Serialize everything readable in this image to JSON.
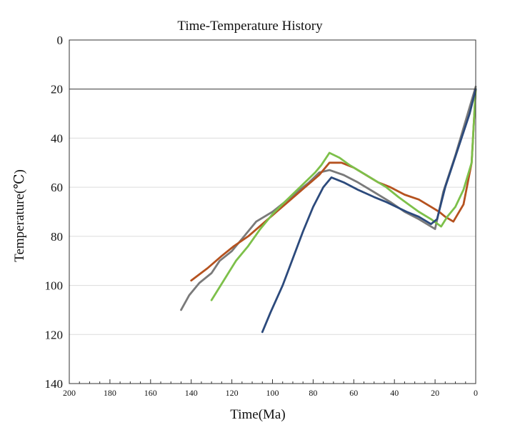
{
  "chart_data": {
    "type": "line",
    "title": "Time-Temperature History",
    "xlabel": "Time(Ma)",
    "ylabel": "Temperature(℃)",
    "xlim": [
      200,
      0
    ],
    "ylim": [
      0,
      140
    ],
    "y_inverted": true,
    "x_ticks": [
      200,
      180,
      160,
      140,
      120,
      100,
      80,
      60,
      40,
      20,
      0
    ],
    "y_ticks": [
      0,
      20,
      40,
      60,
      80,
      100,
      120,
      140
    ],
    "x_minor_step": 5,
    "grid": true,
    "reference_line_y": 20,
    "legend": "none",
    "series": [
      {
        "color": "#7a7a7a",
        "x": [
          145,
          141,
          136,
          130,
          126,
          120,
          114,
          108,
          100,
          94,
          88,
          82,
          77,
          72,
          65,
          58,
          50,
          42,
          35,
          28,
          20,
          16,
          10,
          5,
          0
        ],
        "y": [
          110,
          104,
          99,
          95,
          90,
          86,
          80,
          74,
          70,
          66,
          62,
          58,
          54,
          53,
          55,
          58,
          62,
          66,
          70,
          73,
          77,
          62,
          47,
          33,
          19
        ]
      },
      {
        "color": "#b5521f",
        "x": [
          140,
          132,
          125,
          119,
          112,
          105,
          98,
          91,
          84,
          77,
          72,
          66,
          60,
          54,
          48,
          42,
          35,
          28,
          22,
          18,
          15,
          11,
          6,
          2,
          0
        ],
        "y": [
          98,
          93,
          88,
          84,
          80,
          75,
          70,
          65,
          60,
          55,
          50,
          50,
          52,
          55,
          58,
          60,
          63,
          65,
          68,
          70,
          72,
          74,
          67,
          50,
          20
        ]
      },
      {
        "color": "#7dc04a",
        "x": [
          130,
          124,
          118,
          112,
          106,
          100,
          94,
          89,
          84,
          79,
          76,
          72,
          67,
          62,
          56,
          50,
          44,
          38,
          33,
          28,
          22,
          17,
          14,
          10,
          6,
          2,
          0
        ],
        "y": [
          106,
          98,
          90,
          84,
          77,
          71,
          66,
          62,
          58,
          54,
          51,
          46,
          48,
          51,
          54,
          57,
          60,
          64,
          67,
          70,
          73,
          76,
          72,
          68,
          61,
          50,
          20
        ]
      },
      {
        "color": "#2c4a7c",
        "x": [
          105,
          101,
          95,
          90,
          85,
          80,
          75,
          71,
          65,
          58,
          50,
          44,
          39,
          34,
          28,
          22,
          19,
          15,
          11,
          7,
          3,
          0
        ],
        "y": [
          119,
          111,
          100,
          89,
          78,
          68,
          60,
          56,
          58,
          61,
          64,
          66,
          68,
          70,
          72,
          75,
          73,
          60,
          50,
          40,
          30,
          20
        ]
      }
    ]
  }
}
